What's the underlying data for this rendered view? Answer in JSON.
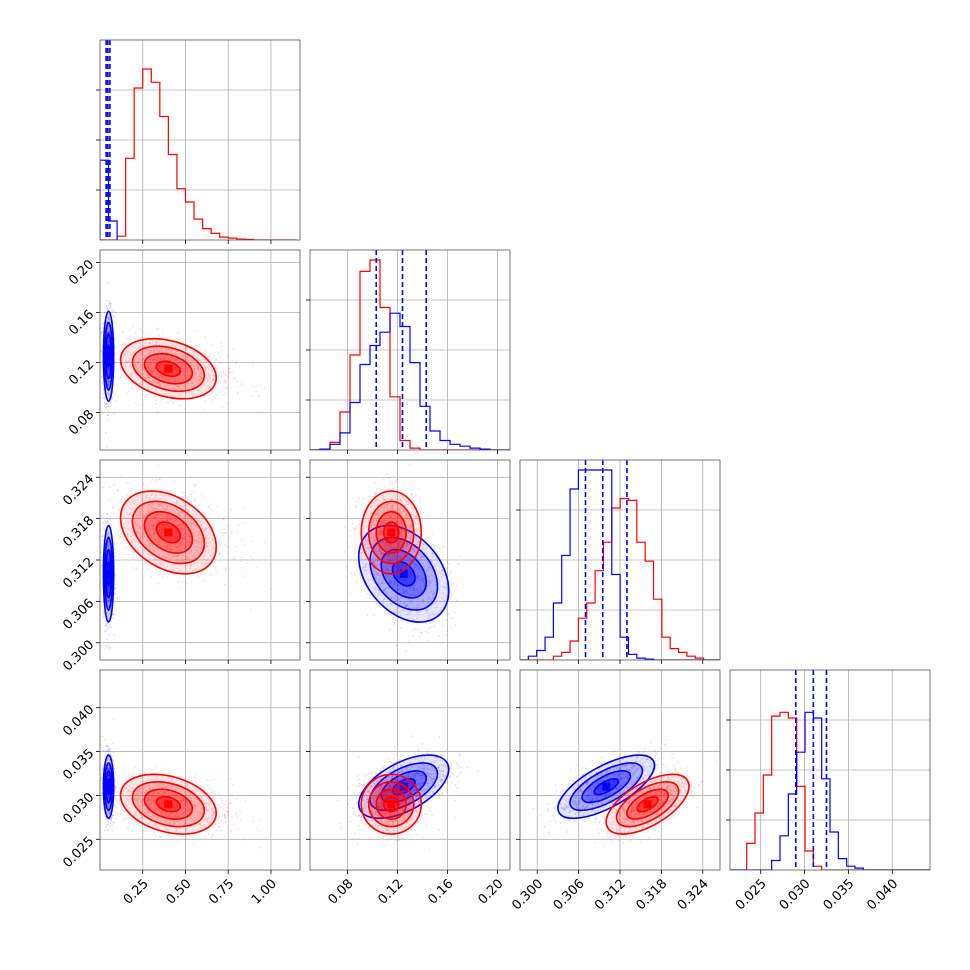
{
  "colors": {
    "blue": "#0000ff",
    "red": "#ff0000",
    "grid": "#b0b0b0",
    "frame": "#555555"
  },
  "chart_data": {
    "type": "corner",
    "grid": true,
    "parameters": [
      {
        "range": [
          0.0,
          1.17
        ],
        "ticks": [
          "0.25",
          "0.50",
          "0.75",
          "1.00"
        ],
        "tick_values": [
          0.25,
          0.5,
          0.75,
          1.0
        ]
      },
      {
        "range": [
          0.05,
          0.21
        ],
        "ticks": [
          "0.08",
          "0.12",
          "0.16",
          "0.20"
        ],
        "tick_values": [
          0.08,
          0.12,
          0.16,
          0.2
        ]
      },
      {
        "range": [
          0.2975,
          0.3265
        ],
        "ticks": [
          "0.300",
          "0.306",
          "0.312",
          "0.318",
          "0.324"
        ],
        "tick_values": [
          0.3,
          0.306,
          0.312,
          0.318,
          0.324
        ]
      },
      {
        "range": [
          0.0215,
          0.0443
        ],
        "ticks": [
          "0.025",
          "0.030",
          "0.035",
          "0.040"
        ],
        "tick_values": [
          0.025,
          0.03,
          0.035,
          0.04
        ]
      }
    ],
    "series": [
      {
        "color": "blue",
        "means": [
          0.05,
          0.125,
          0.31,
          0.031
        ],
        "stds": [
          0.015,
          0.018,
          0.0035,
          0.0018
        ],
        "quantiles": [
          [
            0.036,
            0.046,
            0.058
          ],
          [
            0.103,
            0.124,
            0.143
          ],
          [
            0.307,
            0.3095,
            0.313
          ],
          [
            0.029,
            0.031,
            0.0325
          ]
        ],
        "hist_params": [
          {
            "edges": [
              0.0,
              0.05,
              0.1
            ],
            "values": [
              0.42,
              0.1
            ]
          },
          {
            "x0": 0.05,
            "dx": 0.008,
            "values": [
              0.0,
              0.005,
              0.03,
              0.09,
              0.25,
              0.45,
              0.55,
              0.62,
              0.72,
              0.65,
              0.46,
              0.23,
              0.1,
              0.05,
              0.03,
              0.02,
              0.01,
              0.005,
              0.0,
              0.0
            ]
          },
          {
            "x0": 0.2975,
            "dx": 0.00121,
            "values": [
              0.0,
              0.02,
              0.05,
              0.12,
              0.3,
              0.55,
              0.9,
              1.0,
              1.0,
              1.0,
              1.0,
              0.45,
              0.12,
              0.03,
              0.01,
              0.005,
              0.0,
              0.0,
              0.0,
              0.0,
              0.0,
              0.0,
              0.0,
              0.0
            ]
          },
          {
            "x0": 0.0215,
            "dx": 0.00095,
            "values": [
              0.0,
              0.0,
              0.0,
              0.0,
              0.0,
              0.05,
              0.18,
              0.4,
              0.62,
              0.83,
              0.8,
              0.48,
              0.2,
              0.06,
              0.02,
              0.01,
              0.0,
              0.0,
              0.0,
              0.0,
              0.0,
              0.0,
              0.0,
              0.0
            ]
          }
        ],
        "corr": {
          "1-0": 0.0,
          "2-0": 0.0,
          "2-1": -0.35,
          "3-0": 0.0,
          "3-1": 0.55,
          "3-2": 0.68
        }
      },
      {
        "color": "red",
        "means": [
          0.4,
          0.115,
          0.316,
          0.029
        ],
        "stds": [
          0.14,
          0.012,
          0.003,
          0.0017
        ],
        "quantiles": [],
        "hist_params": [
          {
            "x0": 0.0,
            "dx": 0.05,
            "values": [
              0.0,
              0.0,
              0.02,
              0.43,
              0.8,
              0.9,
              0.83,
              0.65,
              0.45,
              0.27,
              0.2,
              0.11,
              0.06,
              0.035,
              0.015,
              0.01,
              0.005,
              0.003,
              0.0,
              0.0,
              0.0,
              0.0,
              0.0
            ]
          },
          {
            "x0": 0.05,
            "dx": 0.008,
            "values": [
              0.0,
              0.005,
              0.04,
              0.2,
              0.5,
              0.94,
              1.0,
              0.75,
              0.28,
              0.05,
              0.01,
              0.0,
              0.0,
              0.0,
              0.0,
              0.0,
              0.0,
              0.0,
              0.0,
              0.0
            ]
          },
          {
            "x0": 0.2975,
            "dx": 0.00121,
            "values": [
              0.0,
              0.0,
              0.0,
              0.0,
              0.02,
              0.04,
              0.1,
              0.22,
              0.3,
              0.47,
              0.62,
              0.8,
              0.85,
              0.84,
              0.62,
              0.52,
              0.32,
              0.12,
              0.06,
              0.04,
              0.02,
              0.01,
              0.0,
              0.0
            ]
          },
          {
            "x0": 0.0215,
            "dx": 0.00095,
            "values": [
              0.0,
              0.0,
              0.14,
              0.3,
              0.5,
              0.81,
              0.83,
              0.8,
              0.44,
              0.1,
              0.02,
              0.0,
              0.0,
              0.0,
              0.0,
              0.0,
              0.0,
              0.0,
              0.0,
              0.0,
              0.0,
              0.0,
              0.0,
              0.0
            ]
          }
        ],
        "corr": {
          "1-0": -0.3,
          "2-0": -0.35,
          "2-1": 0.0,
          "3-0": -0.3,
          "3-1": 0.0,
          "3-2": 0.6
        }
      }
    ],
    "contour_levels_sigma": [
      0.5,
      1.0,
      1.5,
      2.0
    ]
  }
}
